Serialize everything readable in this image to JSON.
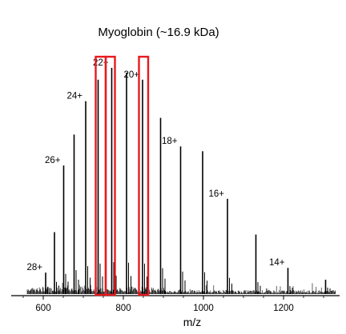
{
  "chart_data": {
    "type": "bar",
    "title": "Myoglobin (~16.9 kDa)",
    "xlabel": "m/z",
    "ylabel": "",
    "xlim": [
      520,
      1340
    ],
    "ylim": [
      0,
      100
    ],
    "xticks": [
      "600",
      "800",
      "1000",
      "1200"
    ],
    "grid": false,
    "legend": "none",
    "colors": {
      "peak": "#000000",
      "highlight": "#e8191e"
    },
    "peaks": [
      {
        "x": 606,
        "y": 9,
        "label": "28+"
      },
      {
        "x": 628,
        "y": 26,
        "label": ""
      },
      {
        "x": 651,
        "y": 54,
        "label": "26+"
      },
      {
        "x": 677,
        "y": 67,
        "label": ""
      },
      {
        "x": 706,
        "y": 81,
        "label": "24+"
      },
      {
        "x": 737,
        "y": 90,
        "label": ""
      },
      {
        "x": 771,
        "y": 95,
        "label": "22+"
      },
      {
        "x": 808,
        "y": 93,
        "label": ""
      },
      {
        "x": 848,
        "y": 90,
        "label": "20+"
      },
      {
        "x": 893,
        "y": 74,
        "label": ""
      },
      {
        "x": 943,
        "y": 62,
        "label": "18+"
      },
      {
        "x": 998,
        "y": 60,
        "label": ""
      },
      {
        "x": 1060,
        "y": 40,
        "label": "16+"
      },
      {
        "x": 1131,
        "y": 25,
        "label": ""
      },
      {
        "x": 1211,
        "y": 11,
        "label": "14+"
      },
      {
        "x": 1305,
        "y": 6,
        "label": ""
      }
    ],
    "highlight_boxes": [
      {
        "x_from": 731,
        "x_to": 756
      },
      {
        "x_from": 756,
        "x_to": 779
      },
      {
        "x_from": 839,
        "x_to": 862
      }
    ]
  }
}
